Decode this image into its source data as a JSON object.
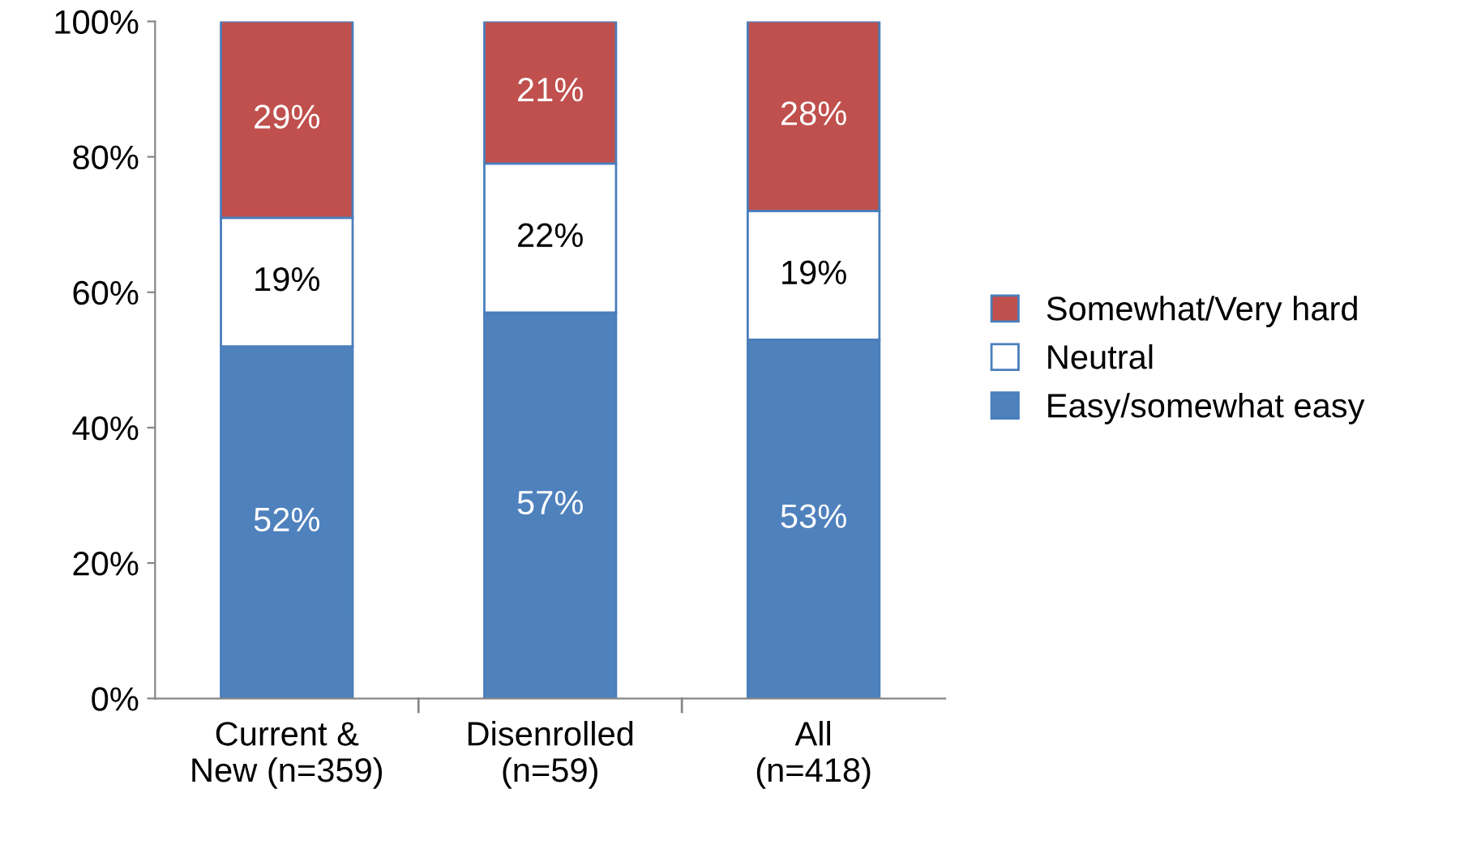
{
  "chart_data": {
    "type": "bar",
    "stacked": true,
    "categories": [
      "Current &\nNew (n=359)",
      "Disenrolled\n(n=59)",
      "All\n(n=418)"
    ],
    "series": [
      {
        "name": "Easy/somewhat easy",
        "color": "#4f81bd",
        "values": [
          52,
          57,
          53
        ],
        "value_labels": [
          "52%",
          "57%",
          "53%"
        ]
      },
      {
        "name": "Neutral",
        "color": "#ffffff",
        "values": [
          19,
          22,
          19
        ],
        "value_labels": [
          "19%",
          "22%",
          "19%"
        ]
      },
      {
        "name": "Somewhat/Very hard",
        "color": "#c0504d",
        "values": [
          29,
          21,
          28
        ],
        "value_labels": [
          "29%",
          "21%",
          "28%"
        ]
      }
    ],
    "ylim": [
      0,
      100
    ],
    "yticks": [
      {
        "value": 0,
        "label": "0%"
      },
      {
        "value": 20,
        "label": "20%"
      },
      {
        "value": 40,
        "label": "40%"
      },
      {
        "value": 60,
        "label": "60%"
      },
      {
        "value": 80,
        "label": "80%"
      },
      {
        "value": 100,
        "label": "100%"
      }
    ],
    "grid": false,
    "legend": "right"
  }
}
